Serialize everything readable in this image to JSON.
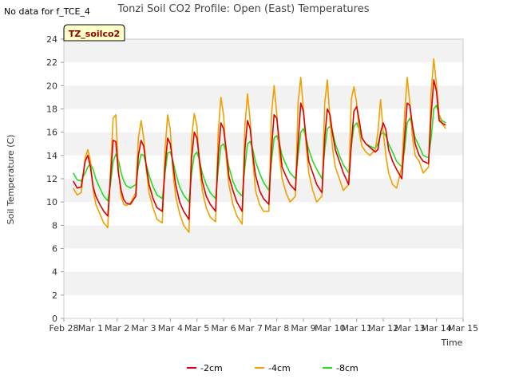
{
  "note": "No data for f_TCE_4",
  "chart_data": {
    "type": "line",
    "title": "Tonzi Soil CO2 Profile: Open (East) Temperatures",
    "xlabel": "Time",
    "ylabel": "Soil Temperature (C)",
    "tag": "TZ_soilco2",
    "xlim": [
      0,
      15
    ],
    "ylim": [
      0,
      24
    ],
    "xticks": [
      0,
      1,
      2,
      3,
      4,
      5,
      6,
      7,
      8,
      9,
      10,
      11,
      12,
      13,
      14,
      15
    ],
    "xtick_labels": [
      "Feb 28",
      "Mar 1",
      "Mar 2",
      "Mar 3",
      "Mar 4",
      "Mar 5",
      "Mar 6",
      "Mar 7",
      "Mar 8",
      "Mar 9",
      "Mar 10",
      "Mar 11",
      "Mar 12",
      "Mar 13",
      "Mar 14",
      "Mar 15"
    ],
    "yticks": [
      0,
      2,
      4,
      6,
      8,
      10,
      12,
      14,
      16,
      18,
      20,
      22,
      24
    ],
    "ytick_labels": [
      "0",
      "2",
      "4",
      "6",
      "8",
      "10",
      "12",
      "14",
      "16",
      "18",
      "20",
      "22",
      "24"
    ],
    "grid": "alternating horizontal bands",
    "legend_position": "bottom-center",
    "series": [
      {
        "name": "-2cm",
        "color": "#dd0000",
        "x": [
          0.35,
          0.5,
          0.65,
          0.8,
          0.9,
          1.0,
          1.1,
          1.2,
          1.35,
          1.5,
          1.65,
          1.75,
          1.85,
          1.95,
          2.05,
          2.15,
          2.25,
          2.35,
          2.5,
          2.7,
          2.8,
          2.9,
          3.0,
          3.1,
          3.2,
          3.35,
          3.5,
          3.7,
          3.8,
          3.9,
          4.0,
          4.1,
          4.2,
          4.35,
          4.5,
          4.7,
          4.8,
          4.9,
          5.0,
          5.1,
          5.2,
          5.35,
          5.5,
          5.7,
          5.8,
          5.9,
          6.0,
          6.1,
          6.2,
          6.35,
          6.5,
          6.7,
          6.8,
          6.9,
          7.0,
          7.1,
          7.2,
          7.35,
          7.5,
          7.7,
          7.8,
          7.9,
          8.0,
          8.1,
          8.2,
          8.35,
          8.5,
          8.7,
          8.8,
          8.9,
          9.0,
          9.1,
          9.2,
          9.35,
          9.5,
          9.7,
          9.8,
          9.9,
          10.0,
          10.1,
          10.2,
          10.35,
          10.5,
          10.7,
          10.8,
          10.9,
          11.0,
          11.1,
          11.2,
          11.35,
          11.5,
          11.7,
          11.8,
          11.9,
          12.0,
          12.1,
          12.2,
          12.35,
          12.5,
          12.7,
          12.8,
          12.9,
          13.0,
          13.1,
          13.2,
          13.35,
          13.5,
          13.7,
          13.8,
          13.9,
          14.0,
          14.1,
          14.2,
          14.35
        ],
        "values": [
          11.8,
          11.2,
          11.3,
          13.5,
          14.0,
          13.0,
          11.3,
          10.5,
          9.8,
          9.2,
          8.8,
          12.0,
          15.3,
          15.2,
          12.5,
          11.0,
          10.2,
          9.9,
          9.8,
          10.5,
          14.0,
          15.3,
          14.8,
          13.0,
          11.5,
          10.3,
          9.5,
          9.2,
          13.0,
          15.5,
          15.0,
          13.2,
          11.5,
          10.0,
          9.2,
          8.5,
          13.8,
          16.0,
          15.5,
          13.5,
          11.8,
          10.5,
          9.8,
          9.2,
          14.0,
          16.8,
          16.3,
          14.5,
          12.2,
          11.0,
          10.0,
          9.2,
          14.5,
          17.0,
          16.3,
          14.0,
          12.3,
          11.0,
          10.3,
          9.8,
          14.5,
          17.5,
          17.2,
          15.0,
          13.0,
          12.2,
          11.5,
          11.0,
          15.0,
          18.5,
          17.8,
          15.5,
          13.5,
          12.5,
          11.5,
          10.8,
          15.5,
          18.0,
          17.5,
          15.8,
          14.5,
          13.5,
          12.5,
          11.5,
          15.0,
          17.8,
          18.2,
          17.0,
          15.5,
          15.0,
          14.7,
          14.3,
          14.5,
          16.0,
          16.8,
          16.2,
          14.5,
          13.5,
          12.8,
          12.0,
          15.5,
          18.5,
          18.3,
          16.5,
          15.0,
          14.0,
          13.5,
          13.3,
          17.5,
          20.5,
          19.5,
          17.0,
          16.8,
          16.6
        ]
      },
      {
        "name": "-4cm",
        "color": "#f0a000",
        "x": [
          0.35,
          0.5,
          0.65,
          0.8,
          0.9,
          1.0,
          1.1,
          1.2,
          1.35,
          1.5,
          1.65,
          1.75,
          1.85,
          1.95,
          2.05,
          2.15,
          2.25,
          2.35,
          2.5,
          2.7,
          2.8,
          2.9,
          3.0,
          3.1,
          3.2,
          3.35,
          3.5,
          3.7,
          3.8,
          3.9,
          4.0,
          4.1,
          4.2,
          4.35,
          4.5,
          4.7,
          4.8,
          4.9,
          5.0,
          5.1,
          5.2,
          5.35,
          5.5,
          5.7,
          5.8,
          5.9,
          6.0,
          6.1,
          6.2,
          6.35,
          6.5,
          6.7,
          6.8,
          6.9,
          7.0,
          7.1,
          7.2,
          7.35,
          7.5,
          7.7,
          7.8,
          7.9,
          8.0,
          8.1,
          8.2,
          8.35,
          8.5,
          8.7,
          8.8,
          8.9,
          9.0,
          9.1,
          9.2,
          9.35,
          9.5,
          9.7,
          9.8,
          9.9,
          10.0,
          10.1,
          10.2,
          10.35,
          10.5,
          10.7,
          10.8,
          10.9,
          11.0,
          11.1,
          11.2,
          11.35,
          11.5,
          11.7,
          11.8,
          11.9,
          12.0,
          12.1,
          12.2,
          12.35,
          12.5,
          12.7,
          12.8,
          12.9,
          13.0,
          13.1,
          13.2,
          13.35,
          13.5,
          13.7,
          13.8,
          13.9,
          14.0,
          14.1,
          14.2,
          14.35
        ],
        "values": [
          11.2,
          10.6,
          10.8,
          13.8,
          14.5,
          13.5,
          11.0,
          9.8,
          9.0,
          8.2,
          7.8,
          12.5,
          17.2,
          17.5,
          12.8,
          10.5,
          9.8,
          9.7,
          9.9,
          10.8,
          15.5,
          17.0,
          15.5,
          12.8,
          10.8,
          9.5,
          8.5,
          8.2,
          14.5,
          17.5,
          16.2,
          12.5,
          10.5,
          9.0,
          8.0,
          7.4,
          15.5,
          17.6,
          16.5,
          13.0,
          11.0,
          9.5,
          8.7,
          8.3,
          16.0,
          19.0,
          17.5,
          13.8,
          11.5,
          9.8,
          8.8,
          8.1,
          16.5,
          19.3,
          17.0,
          13.5,
          11.0,
          9.8,
          9.2,
          9.2,
          17.5,
          20.0,
          17.5,
          14.0,
          12.0,
          10.8,
          10.0,
          10.5,
          18.5,
          20.7,
          18.0,
          15.0,
          12.5,
          11.0,
          10.0,
          10.5,
          18.5,
          20.5,
          17.0,
          14.5,
          13.0,
          12.0,
          11.0,
          11.5,
          18.8,
          19.9,
          18.5,
          16.0,
          14.8,
          14.3,
          14.0,
          14.5,
          16.0,
          18.8,
          16.0,
          14.0,
          12.5,
          11.5,
          11.2,
          13.0,
          17.5,
          20.7,
          18.5,
          15.5,
          14.0,
          13.5,
          12.5,
          13.0,
          19.5,
          22.3,
          20.0,
          17.5,
          16.8,
          16.3
        ]
      },
      {
        "name": "-8cm",
        "color": "#22dd22",
        "x": [
          0.35,
          0.5,
          0.65,
          0.8,
          0.9,
          1.0,
          1.1,
          1.2,
          1.35,
          1.5,
          1.65,
          1.75,
          1.85,
          1.95,
          2.05,
          2.15,
          2.25,
          2.35,
          2.5,
          2.7,
          2.8,
          2.9,
          3.0,
          3.1,
          3.2,
          3.35,
          3.5,
          3.7,
          3.8,
          3.9,
          4.0,
          4.1,
          4.2,
          4.35,
          4.5,
          4.7,
          4.8,
          4.9,
          5.0,
          5.1,
          5.2,
          5.35,
          5.5,
          5.7,
          5.8,
          5.9,
          6.0,
          6.1,
          6.2,
          6.35,
          6.5,
          6.7,
          6.8,
          6.9,
          7.0,
          7.1,
          7.2,
          7.35,
          7.5,
          7.7,
          7.8,
          7.9,
          8.0,
          8.1,
          8.2,
          8.35,
          8.5,
          8.7,
          8.8,
          8.9,
          9.0,
          9.1,
          9.2,
          9.35,
          9.5,
          9.7,
          9.8,
          9.9,
          10.0,
          10.1,
          10.2,
          10.35,
          10.5,
          10.7,
          10.8,
          10.9,
          11.0,
          11.1,
          11.2,
          11.35,
          11.5,
          11.7,
          11.8,
          11.9,
          12.0,
          12.1,
          12.2,
          12.35,
          12.5,
          12.7,
          12.8,
          12.9,
          13.0,
          13.1,
          13.2,
          13.35,
          13.5,
          13.7,
          13.8,
          13.9,
          14.0,
          14.1,
          14.2,
          14.35
        ],
        "values": [
          12.5,
          11.9,
          11.8,
          12.5,
          13.0,
          13.3,
          12.8,
          12.0,
          11.2,
          10.5,
          10.1,
          11.5,
          13.5,
          14.1,
          13.6,
          12.5,
          11.8,
          11.4,
          11.2,
          11.5,
          13.0,
          14.1,
          14.0,
          13.2,
          12.3,
          11.3,
          10.6,
          10.3,
          12.5,
          14.2,
          14.3,
          13.5,
          12.5,
          11.3,
          10.6,
          10.0,
          12.5,
          14.0,
          14.3,
          13.5,
          12.5,
          11.5,
          10.8,
          10.3,
          12.8,
          14.8,
          15.0,
          14.2,
          13.0,
          11.8,
          11.0,
          10.5,
          13.0,
          15.0,
          15.2,
          14.5,
          13.5,
          12.5,
          11.7,
          11.0,
          13.5,
          15.5,
          15.7,
          15.0,
          14.0,
          13.2,
          12.5,
          12.0,
          14.0,
          16.0,
          16.3,
          15.5,
          14.5,
          13.5,
          12.8,
          12.0,
          14.5,
          16.3,
          16.5,
          16.0,
          15.0,
          14.0,
          13.2,
          12.5,
          14.8,
          16.5,
          16.8,
          16.2,
          15.5,
          15.0,
          14.8,
          14.6,
          15.0,
          15.8,
          16.0,
          15.7,
          15.0,
          14.3,
          13.5,
          13.0,
          14.5,
          16.8,
          17.2,
          16.5,
          15.5,
          14.8,
          14.0,
          13.8,
          15.5,
          18.0,
          18.3,
          17.5,
          17.0,
          16.8
        ]
      }
    ]
  }
}
